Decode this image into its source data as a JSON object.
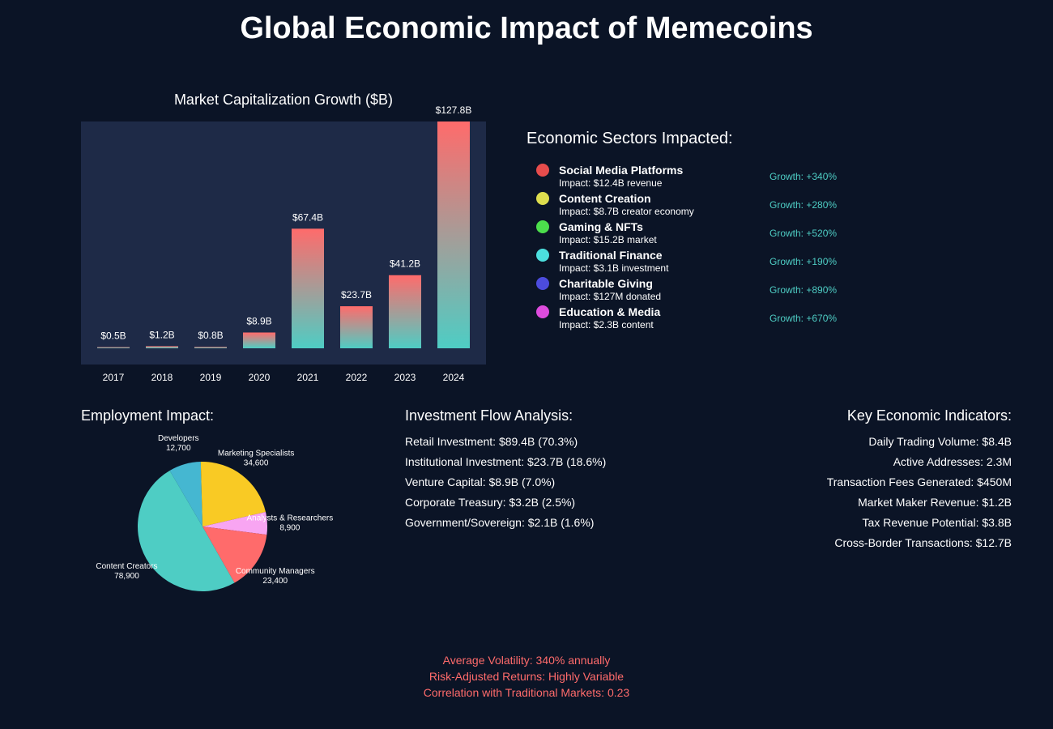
{
  "page": {
    "title": "Global Economic Impact of Memecoins"
  },
  "chart_data": [
    {
      "type": "bar",
      "title": "Market Capitalization Growth ($B)",
      "categories": [
        "2017",
        "2018",
        "2019",
        "2020",
        "2021",
        "2022",
        "2023",
        "2024"
      ],
      "values": [
        0.5,
        1.2,
        0.8,
        8.9,
        67.4,
        23.7,
        41.2,
        127.8
      ],
      "value_labels": [
        "$0.5B",
        "$1.2B",
        "$0.8B",
        "$8.9B",
        "$67.4B",
        "$23.7B",
        "$41.2B",
        "$127.8B"
      ],
      "xlabel": "",
      "ylabel": "",
      "ylim": [
        0,
        127.8
      ],
      "grid": false,
      "colors": {
        "top": "#ff6b6b",
        "bottom": "#4ecdc4",
        "plot_bg": "#1e2a47"
      }
    },
    {
      "type": "pie",
      "title": "Employment Impact:",
      "slices": [
        {
          "label": "Content Creators",
          "value_label": "78,900",
          "value": 78900,
          "color": "#4ecdc4"
        },
        {
          "label": "Developers",
          "value_label": "12,700",
          "value": 12700,
          "color": "#45b7d1"
        },
        {
          "label": "Marketing Specialists",
          "value_label": "34,600",
          "value": 34600,
          "color": "#f9ca24"
        },
        {
          "label": "Analysts & Researchers",
          "value_label": "8,900",
          "value": 8900,
          "color": "#f8a5f2"
        },
        {
          "label": "Community Managers",
          "value_label": "23,400",
          "value": 23400,
          "color": "#ff6b6b"
        }
      ]
    }
  ],
  "sectors": {
    "title": "Economic Sectors Impacted:",
    "items": [
      {
        "name": "Social Media Platforms",
        "impact": "Impact: $12.4B revenue",
        "growth": "Growth: +340%",
        "color": "#e74c4c"
      },
      {
        "name": "Content Creation",
        "impact": "Impact: $8.7B creator economy",
        "growth": "Growth: +280%",
        "color": "#dede4e"
      },
      {
        "name": "Gaming & NFTs",
        "impact": "Impact: $15.2B market",
        "growth": "Growth: +520%",
        "color": "#4cde4c"
      },
      {
        "name": "Traditional Finance",
        "impact": "Impact: $3.1B investment",
        "growth": "Growth: +190%",
        "color": "#4cdede"
      },
      {
        "name": "Charitable Giving",
        "impact": "Impact: $127M donated",
        "growth": "Growth: +890%",
        "color": "#4c4cde"
      },
      {
        "name": "Education & Media",
        "impact": "Impact: $2.3B content",
        "growth": "Growth: +670%",
        "color": "#de4cde"
      }
    ]
  },
  "investment": {
    "title": "Investment Flow Analysis:",
    "items": [
      "Retail Investment: $89.4B (70.3%)",
      "Institutional Investment: $23.7B (18.6%)",
      "Venture Capital: $8.9B (7.0%)",
      "Corporate Treasury: $3.2B (2.5%)",
      "Government/Sovereign: $2.1B (1.6%)"
    ]
  },
  "indicators": {
    "title": "Key Economic Indicators:",
    "items": [
      "Daily Trading Volume: $8.4B",
      "Active Addresses: 2.3M",
      "Transaction Fees Generated: $450M",
      "Market Maker Revenue: $1.2B",
      "Tax Revenue Potential: $3.8B",
      "Cross-Border Transactions: $12.7B"
    ]
  },
  "footer": {
    "volatility": "Average Volatility: 340% annually",
    "returns": "Risk-Adjusted Returns: Highly Variable",
    "correlation": "Correlation with Traditional Markets: 0.23"
  }
}
